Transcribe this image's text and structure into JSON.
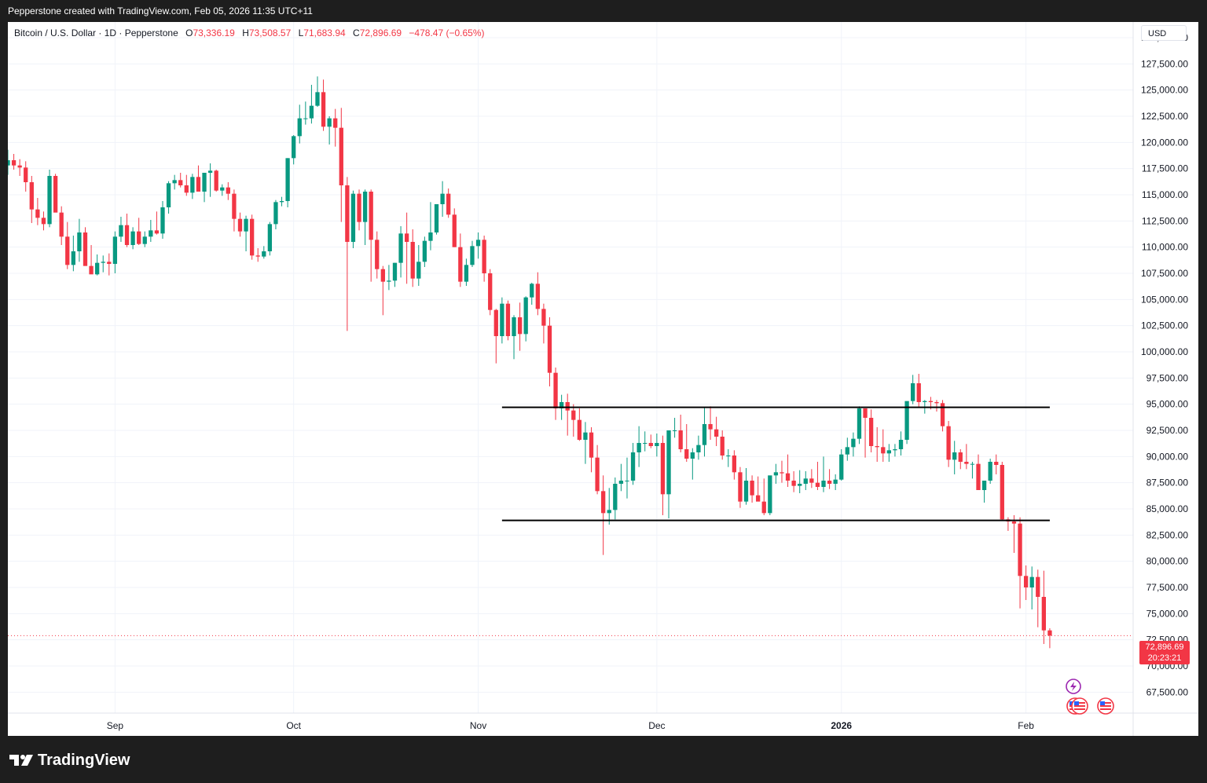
{
  "header": {
    "caption": "Pepperstone created with TradingView.com, Feb 05, 2026 11:35 UTC+11"
  },
  "legend": {
    "symbol": "Bitcoin / U.S. Dollar · 1D · Pepperstone",
    "open_label": "O",
    "open": "73,336.19",
    "high_label": "H",
    "high": "73,508.57",
    "low_label": "L",
    "low": "71,683.94",
    "close_label": "C",
    "close": "72,896.69",
    "change": "−478.47 (−0.65%)"
  },
  "currency": "USD",
  "price_tag": {
    "price": "72,896.69",
    "countdown": "20:23:21"
  },
  "footer": {
    "brand": "TradingView"
  },
  "colors": {
    "up": "#089981",
    "down": "#f23645",
    "grid": "#f0f3fa",
    "axis_text": "#131722"
  },
  "icons": [
    "lightning-event-icon",
    "us-flag-event-icon",
    "us-flag-event-icon",
    "us-flag-event-icon"
  ],
  "chart_data": {
    "type": "candlestick",
    "title": "Bitcoin / U.S. Dollar · 1D · Pepperstone",
    "ylim": [
      65500,
      131500
    ],
    "y_ticks": [
      67500,
      70000,
      72500,
      75000,
      77500,
      80000,
      82500,
      85000,
      87500,
      90000,
      92500,
      95000,
      97500,
      100000,
      102500,
      105000,
      107500,
      110000,
      112500,
      115000,
      117500,
      120000,
      122500,
      125000,
      127500,
      130000
    ],
    "y_tick_labels": [
      "67,500.00",
      "70,000.00",
      "72,500.00",
      "75,000.00",
      "77,500.00",
      "80,000.00",
      "82,500.00",
      "85,000.00",
      "87,500.00",
      "90,000.00",
      "92,500.00",
      "95,000.00",
      "97,500.00",
      "100,000.00",
      "102,500.00",
      "105,000.00",
      "107,500.00",
      "110,000.00",
      "112,500.00",
      "115,000.00",
      "117,500.00",
      "120,000.00",
      "122,500.00",
      "125,000.00",
      "127,500.00",
      "130,000.00"
    ],
    "x_start": "2025-08-14",
    "x_end": "2026-02-19",
    "x_ticks": [
      {
        "date": "2025-09-01",
        "label": "Sep",
        "bold": false
      },
      {
        "date": "2025-10-01",
        "label": "Oct",
        "bold": false
      },
      {
        "date": "2025-11-01",
        "label": "Nov",
        "bold": false
      },
      {
        "date": "2025-12-01",
        "label": "Dec",
        "bold": false
      },
      {
        "date": "2026-01-01",
        "label": "2026",
        "bold": true
      },
      {
        "date": "2026-02-01",
        "label": "Feb",
        "bold": false
      }
    ],
    "horizontal_lines": [
      {
        "y": 94700,
        "from": "2025-11-05",
        "to": "2026-02-05"
      },
      {
        "y": 83900,
        "from": "2025-11-05",
        "to": "2026-02-05"
      }
    ],
    "first_date": "2025-08-14",
    "candles": [
      [
        117800,
        119300,
        116900,
        118300
      ],
      [
        118300,
        118900,
        117400,
        117800
      ],
      [
        117800,
        118400,
        116800,
        117600
      ],
      [
        117600,
        118200,
        115300,
        116200
      ],
      [
        116200,
        116800,
        112300,
        113600
      ],
      [
        113600,
        114700,
        112100,
        112800
      ],
      [
        112800,
        113400,
        111600,
        112200
      ],
      [
        112200,
        117400,
        111900,
        116800
      ],
      [
        116800,
        117000,
        113600,
        113300
      ],
      [
        113300,
        113900,
        110200,
        111000
      ],
      [
        111000,
        112400,
        107900,
        108300
      ],
      [
        108300,
        111100,
        107700,
        109600
      ],
      [
        109600,
        112700,
        108600,
        111400
      ],
      [
        111400,
        111900,
        108500,
        108200
      ],
      [
        108200,
        110200,
        107500,
        107400
      ],
      [
        107400,
        109300,
        107300,
        108500
      ],
      [
        108500,
        109200,
        107600,
        108600
      ],
      [
        108600,
        109400,
        107300,
        108400
      ],
      [
        108400,
        111500,
        107500,
        111000
      ],
      [
        111000,
        112900,
        110500,
        112100
      ],
      [
        112100,
        113200,
        110000,
        110200
      ],
      [
        110200,
        111900,
        109800,
        111500
      ],
      [
        111500,
        112800,
        110200,
        110300
      ],
      [
        110300,
        111500,
        110000,
        111000
      ],
      [
        111000,
        112600,
        110500,
        111600
      ],
      [
        111600,
        113400,
        111200,
        111300
      ],
      [
        111300,
        114400,
        110800,
        113800
      ],
      [
        113800,
        116300,
        113200,
        116100
      ],
      [
        116100,
        116900,
        115500,
        116400
      ],
      [
        116400,
        117100,
        115700,
        115900
      ],
      [
        115900,
        116900,
        114900,
        115200
      ],
      [
        115200,
        117000,
        114600,
        116700
      ],
      [
        116700,
        117800,
        115800,
        115300
      ],
      [
        115300,
        117100,
        114300,
        117100
      ],
      [
        117100,
        118000,
        114800,
        117300
      ],
      [
        117300,
        117400,
        115300,
        115400
      ],
      [
        115400,
        116000,
        114900,
        115700
      ],
      [
        115700,
        116200,
        114500,
        115100
      ],
      [
        115100,
        115500,
        111500,
        112700
      ],
      [
        112700,
        113300,
        111000,
        111500
      ],
      [
        111500,
        113000,
        109600,
        112700
      ],
      [
        112700,
        113100,
        108800,
        109200
      ],
      [
        109200,
        109900,
        108600,
        109100
      ],
      [
        109100,
        110100,
        108900,
        109600
      ],
      [
        109600,
        112400,
        109200,
        112200
      ],
      [
        112200,
        114500,
        111700,
        114300
      ],
      [
        114300,
        114800,
        113900,
        114400
      ],
      [
        114400,
        118500,
        113800,
        118500
      ],
      [
        118500,
        120700,
        117900,
        120600
      ],
      [
        120600,
        123600,
        119900,
        122300
      ],
      [
        122300,
        123900,
        121700,
        122300
      ],
      [
        122300,
        125500,
        121800,
        123500
      ],
      [
        123500,
        126300,
        123400,
        124800
      ],
      [
        124800,
        126000,
        121100,
        121500
      ],
      [
        121500,
        122500,
        119800,
        122300
      ],
      [
        122300,
        123200,
        119600,
        121400
      ],
      [
        121400,
        123300,
        112400,
        115900
      ],
      [
        115900,
        116700,
        102000,
        110500
      ],
      [
        110500,
        115400,
        109900,
        115100
      ],
      [
        115100,
        115500,
        111600,
        112400
      ],
      [
        112400,
        115500,
        110200,
        115300
      ],
      [
        115300,
        115500,
        106700,
        110700
      ],
      [
        110700,
        111500,
        107000,
        107900
      ],
      [
        107900,
        108200,
        103500,
        106700
      ],
      [
        106700,
        108300,
        105900,
        106800
      ],
      [
        106800,
        108500,
        106200,
        108500
      ],
      [
        108500,
        112000,
        107100,
        111300
      ],
      [
        111300,
        113300,
        106500,
        110500
      ],
      [
        110500,
        111700,
        106200,
        107000
      ],
      [
        107000,
        110200,
        106300,
        108600
      ],
      [
        108600,
        111000,
        108100,
        110600
      ],
      [
        110600,
        114300,
        109700,
        111400
      ],
      [
        111400,
        114000,
        111200,
        114100
      ],
      [
        114100,
        116300,
        112900,
        115100
      ],
      [
        115100,
        115600,
        112800,
        113100
      ],
      [
        113100,
        113700,
        110000,
        110000
      ],
      [
        110000,
        111300,
        106200,
        106700
      ],
      [
        106700,
        108900,
        106300,
        108300
      ],
      [
        108300,
        110600,
        108100,
        110100
      ],
      [
        110100,
        111400,
        108900,
        110700
      ],
      [
        110700,
        111100,
        106700,
        107500
      ],
      [
        107500,
        107900,
        103500,
        104000
      ],
      [
        104000,
        104100,
        98900,
        101500
      ],
      [
        101500,
        105200,
        100800,
        104600
      ],
      [
        104600,
        104900,
        101100,
        101500
      ],
      [
        101500,
        103500,
        99300,
        103300
      ],
      [
        103300,
        104700,
        100100,
        101700
      ],
      [
        101700,
        105300,
        101000,
        105200
      ],
      [
        105200,
        106600,
        104500,
        106500
      ],
      [
        106500,
        107600,
        103500,
        104100
      ],
      [
        104100,
        104600,
        100800,
        102500
      ],
      [
        102500,
        103300,
        96700,
        98000
      ],
      [
        98000,
        98500,
        93500,
        94600
      ],
      [
        94600,
        95900,
        93500,
        95200
      ],
      [
        95200,
        96000,
        92000,
        94400
      ],
      [
        94400,
        95000,
        91900,
        93500
      ],
      [
        93500,
        94600,
        91500,
        91600
      ],
      [
        91600,
        93300,
        89300,
        92300
      ],
      [
        92300,
        92800,
        88500,
        89900
      ],
      [
        89900,
        91100,
        86400,
        86700
      ],
      [
        86700,
        88200,
        80600,
        84600
      ],
      [
        84600,
        87000,
        83500,
        84900
      ],
      [
        84900,
        88000,
        84000,
        87400
      ],
      [
        87400,
        89300,
        86700,
        87700
      ],
      [
        87700,
        89900,
        86000,
        87700
      ],
      [
        87700,
        91300,
        87300,
        90400
      ],
      [
        90400,
        92900,
        89000,
        91300
      ],
      [
        91300,
        92400,
        90500,
        91300
      ],
      [
        91300,
        92100,
        90800,
        91000
      ],
      [
        91000,
        92200,
        90000,
        91300
      ],
      [
        91300,
        92000,
        84400,
        86400
      ],
      [
        86400,
        92400,
        84100,
        92500
      ],
      [
        92500,
        93700,
        91800,
        92500
      ],
      [
        92500,
        94000,
        90400,
        90700
      ],
      [
        90700,
        93100,
        89500,
        89800
      ],
      [
        89800,
        90800,
        87800,
        90400
      ],
      [
        90400,
        92000,
        89700,
        91100
      ],
      [
        91100,
        94700,
        90000,
        93100
      ],
      [
        93100,
        94800,
        91600,
        92600
      ],
      [
        92600,
        93800,
        91000,
        91900
      ],
      [
        91900,
        92500,
        89700,
        90100
      ],
      [
        90100,
        90700,
        89000,
        90100
      ],
      [
        90100,
        90600,
        87800,
        88500
      ],
      [
        88500,
        89000,
        85100,
        85700
      ],
      [
        85700,
        88900,
        85400,
        87700
      ],
      [
        87700,
        88200,
        85600,
        86300
      ],
      [
        86300,
        88100,
        85900,
        85700
      ],
      [
        85700,
        87900,
        84400,
        84600
      ],
      [
        84600,
        88000,
        84400,
        88200
      ],
      [
        88200,
        89300,
        87400,
        88500
      ],
      [
        88500,
        89600,
        87500,
        88400
      ],
      [
        88400,
        90200,
        87100,
        87700
      ],
      [
        87700,
        88600,
        86600,
        87200
      ],
      [
        87200,
        88700,
        86500,
        87400
      ],
      [
        87400,
        88600,
        86800,
        87900
      ],
      [
        87900,
        88800,
        87000,
        87500
      ],
      [
        87500,
        89500,
        86800,
        87100
      ],
      [
        87100,
        90000,
        86600,
        87700
      ],
      [
        87700,
        88800,
        86900,
        87400
      ],
      [
        87400,
        88300,
        86800,
        87800
      ],
      [
        87800,
        90700,
        87700,
        90200
      ],
      [
        90200,
        91800,
        89600,
        90900
      ],
      [
        90900,
        92300,
        90000,
        91700
      ],
      [
        91700,
        94800,
        91200,
        94600
      ],
      [
        94600,
        94600,
        89900,
        93700
      ],
      [
        93700,
        94500,
        90400,
        91000
      ],
      [
        91000,
        92800,
        89500,
        90900
      ],
      [
        90900,
        92600,
        89500,
        90300
      ],
      [
        90300,
        91200,
        89500,
        90600
      ],
      [
        90600,
        91200,
        90000,
        90700
      ],
      [
        90700,
        92400,
        90100,
        91600
      ],
      [
        91600,
        94900,
        91200,
        95300
      ],
      [
        95300,
        97800,
        95000,
        97000
      ],
      [
        97000,
        97900,
        94700,
        95200
      ],
      [
        95200,
        95400,
        94100,
        95300
      ],
      [
        95300,
        95700,
        94500,
        95200
      ],
      [
        95200,
        95400,
        94300,
        95100
      ],
      [
        95100,
        95400,
        92400,
        92900
      ],
      [
        92900,
        93400,
        89000,
        89700
      ],
      [
        89700,
        91500,
        88300,
        90400
      ],
      [
        90400,
        90700,
        88800,
        89500
      ],
      [
        89500,
        91200,
        88800,
        89300
      ],
      [
        89300,
        89500,
        87900,
        89300
      ],
      [
        89300,
        90200,
        87100,
        86800
      ],
      [
        86800,
        87700,
        85600,
        87700
      ],
      [
        87700,
        89800,
        87400,
        89500
      ],
      [
        89500,
        90200,
        88300,
        89200
      ],
      [
        89200,
        89500,
        83900,
        84000
      ],
      [
        84000,
        84200,
        82900,
        83800
      ],
      [
        83800,
        84400,
        80800,
        83600
      ],
      [
        83600,
        84200,
        75500,
        78600
      ],
      [
        78600,
        79600,
        76300,
        77500
      ],
      [
        77500,
        79500,
        75400,
        78500
      ],
      [
        78500,
        79200,
        73700,
        76600
      ],
      [
        76600,
        79100,
        72100,
        73400
      ],
      [
        73400,
        73600,
        71700,
        72900
      ]
    ]
  }
}
